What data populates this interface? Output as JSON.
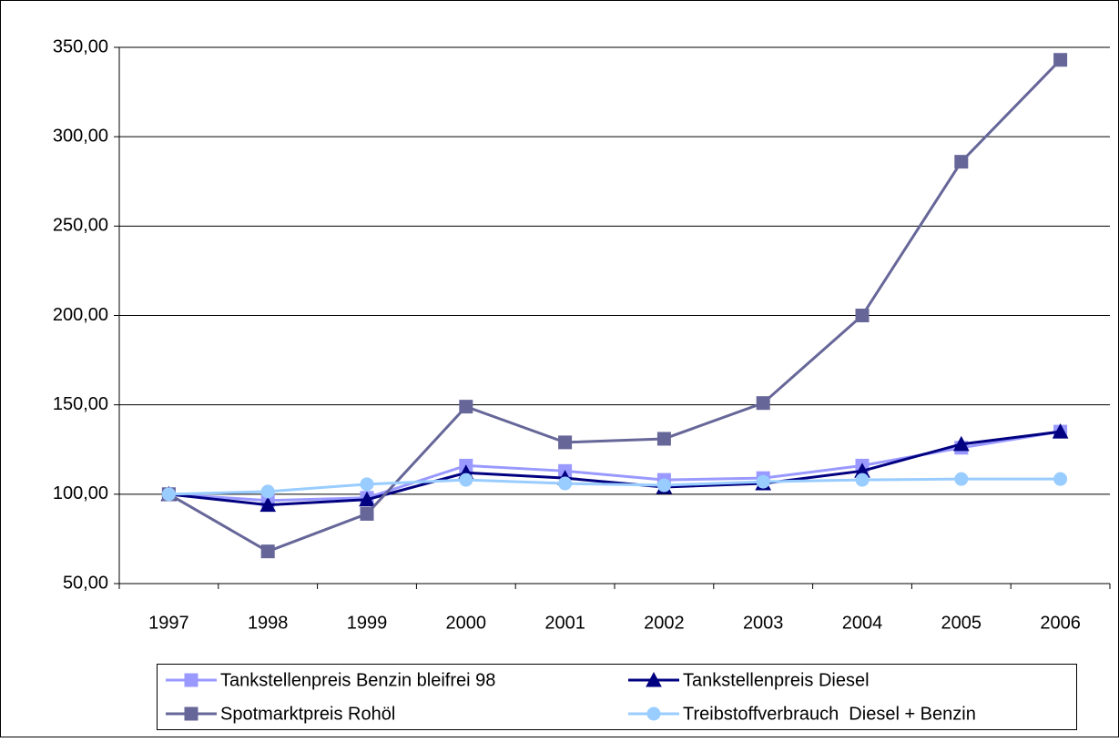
{
  "chart_data": {
    "type": "line",
    "categories": [
      "1997",
      "1998",
      "1999",
      "2000",
      "2001",
      "2002",
      "2003",
      "2004",
      "2005",
      "2006"
    ],
    "series": [
      {
        "name": "Tankstellenpreis Benzin bleifrei 98",
        "color": "#9999ff",
        "marker": "square",
        "values": [
          100,
          96.5,
          98,
          116,
          113,
          108,
          109,
          116,
          126,
          135
        ]
      },
      {
        "name": "Tankstellenpreis Diesel",
        "color": "#000080",
        "marker": "triangle",
        "values": [
          100,
          94,
          97,
          112,
          109,
          104,
          106,
          113,
          128,
          135
        ]
      },
      {
        "name": "Spotmarktpreis Rohöl",
        "color": "#666699",
        "marker": "square",
        "values": [
          100,
          68,
          89,
          149,
          129,
          131,
          151,
          200,
          286,
          343
        ]
      },
      {
        "name": "Treibstoffverbrauch  Diesel + Benzin",
        "color": "#99ccff",
        "marker": "circle",
        "values": [
          100,
          101.5,
          105.6,
          108,
          106,
          105,
          107,
          108,
          108.5,
          108.5
        ]
      }
    ],
    "ylim": [
      50,
      350
    ],
    "yticks": [
      {
        "value": 50,
        "label": "50,00"
      },
      {
        "value": 100,
        "label": "100,00"
      },
      {
        "value": 150,
        "label": "150,00"
      },
      {
        "value": 200,
        "label": "200,00"
      },
      {
        "value": 250,
        "label": "250,00"
      },
      {
        "value": 300,
        "label": "300,00"
      },
      {
        "value": 350,
        "label": "350,00"
      }
    ],
    "grid": true,
    "legend": "bottom"
  }
}
